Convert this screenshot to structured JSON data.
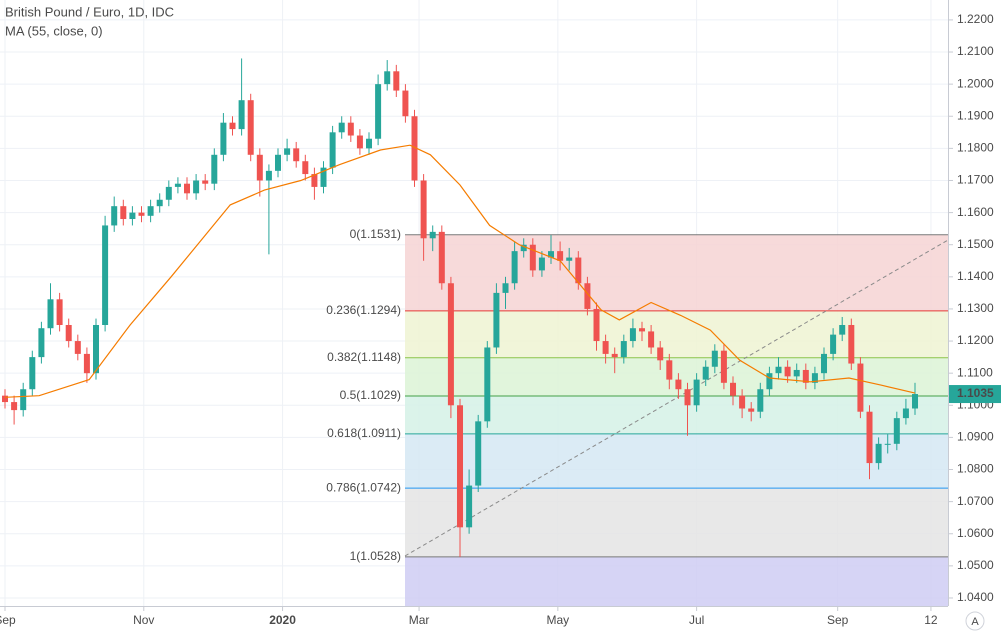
{
  "chart_data": {
    "type": "candlestick",
    "title": "British Pound / Euro, 1D, IDC",
    "subtitle": "MA (55, close, 0)",
    "up_color": "#26a69a",
    "down_color": "#ef5350",
    "x": [
      0,
      4,
      8,
      12,
      16,
      20,
      24,
      28,
      32,
      36,
      40,
      44,
      48,
      52,
      56,
      60,
      64,
      68,
      72,
      76,
      80,
      84,
      88,
      92,
      96,
      100,
      104,
      108,
      112,
      116,
      120,
      124,
      128,
      132,
      136,
      140,
      144,
      148,
      152,
      156,
      160,
      164,
      168,
      172,
      176,
      180,
      184,
      188,
      192,
      196,
      200,
      204,
      208,
      212,
      216,
      220,
      224,
      228,
      232,
      236,
      240,
      244,
      248,
      252,
      256,
      260,
      264,
      268,
      272,
      276,
      280,
      284,
      288,
      292,
      296,
      300,
      304,
      308,
      312,
      316,
      320,
      324,
      328,
      332,
      336,
      340,
      344,
      348,
      352,
      356,
      360,
      364,
      368,
      372,
      376,
      380,
      384,
      388,
      392,
      396,
      400
    ],
    "open": [
      1.103,
      1.101,
      1.0985,
      1.105,
      1.115,
      1.124,
      1.133,
      1.125,
      1.12,
      1.116,
      1.11,
      1.125,
      1.156,
      1.162,
      1.158,
      1.16,
      1.159,
      1.162,
      1.164,
      1.168,
      1.169,
      1.166,
      1.17,
      1.169,
      1.178,
      1.188,
      1.186,
      1.195,
      1.178,
      1.17,
      1.173,
      1.178,
      1.18,
      1.176,
      1.172,
      1.168,
      1.174,
      1.185,
      1.188,
      1.184,
      1.18,
      1.183,
      1.2,
      1.204,
      1.198,
      1.19,
      1.17,
      1.152,
      1.154,
      1.138,
      1.1,
      1.062,
      1.075,
      1.095,
      1.118,
      1.135,
      1.138,
      1.148,
      1.15,
      1.142,
      1.146,
      1.148,
      1.145,
      1.146,
      1.138,
      1.13,
      1.12,
      1.116,
      1.115,
      1.12,
      1.124,
      1.123,
      1.118,
      1.114,
      1.108,
      1.105,
      1.1,
      1.108,
      1.112,
      1.117,
      1.107,
      1.103,
      1.099,
      1.098,
      1.105,
      1.11,
      1.112,
      1.109,
      1.111,
      1.107,
      1.11,
      1.116,
      1.122,
      1.125,
      1.113,
      1.098,
      1.082,
      1.088,
      1.088,
      1.096,
      1.099
    ],
    "high": [
      1.105,
      1.103,
      1.107,
      1.117,
      1.126,
      1.138,
      1.135,
      1.127,
      1.122,
      1.118,
      1.127,
      1.159,
      1.165,
      1.164,
      1.162,
      1.162,
      1.164,
      1.166,
      1.17,
      1.171,
      1.171,
      1.172,
      1.172,
      1.18,
      1.191,
      1.19,
      1.208,
      1.197,
      1.18,
      1.175,
      1.18,
      1.183,
      1.182,
      1.178,
      1.174,
      1.176,
      1.187,
      1.19,
      1.19,
      1.186,
      1.185,
      1.203,
      1.2075,
      1.206,
      1.2,
      1.192,
      1.172,
      1.156,
      1.156,
      1.14,
      1.102,
      1.08,
      1.097,
      1.12,
      1.138,
      1.14,
      1.151,
      1.152,
      1.152,
      1.148,
      1.153,
      1.151,
      1.149,
      1.148,
      1.14,
      1.132,
      1.122,
      1.118,
      1.122,
      1.127,
      1.126,
      1.125,
      1.12,
      1.116,
      1.11,
      1.107,
      1.11,
      1.114,
      1.119,
      1.119,
      1.109,
      1.105,
      1.101,
      1.107,
      1.112,
      1.115,
      1.114,
      1.113,
      1.113,
      1.112,
      1.118,
      1.124,
      1.1275,
      1.127,
      1.115,
      1.1,
      1.09,
      1.091,
      1.098,
      1.102,
      1.107
    ],
    "low": [
      1.099,
      1.094,
      1.0965,
      1.103,
      1.113,
      1.122,
      1.123,
      1.118,
      1.114,
      1.107,
      1.108,
      1.123,
      1.154,
      1.156,
      1.156,
      1.157,
      1.157,
      1.16,
      1.162,
      1.166,
      1.164,
      1.164,
      1.167,
      1.167,
      1.176,
      1.184,
      1.184,
      1.176,
      1.165,
      1.147,
      1.171,
      1.176,
      1.174,
      1.17,
      1.164,
      1.166,
      1.172,
      1.183,
      1.182,
      1.178,
      1.178,
      1.181,
      1.198,
      1.196,
      1.188,
      1.168,
      1.145,
      1.148,
      1.136,
      1.096,
      1.0528,
      1.06,
      1.073,
      1.093,
      1.116,
      1.13,
      1.136,
      1.146,
      1.14,
      1.14,
      1.144,
      1.142,
      1.142,
      1.136,
      1.128,
      1.117,
      1.113,
      1.11,
      1.113,
      1.118,
      1.12,
      1.116,
      1.111,
      1.105,
      1.102,
      1.0905,
      1.098,
      1.106,
      1.11,
      1.105,
      1.1,
      1.096,
      1.095,
      1.096,
      1.103,
      1.108,
      1.107,
      1.107,
      1.105,
      1.105,
      1.108,
      1.114,
      1.12,
      1.111,
      1.096,
      1.077,
      1.08,
      1.085,
      1.086,
      1.094,
      1.097
    ],
    "close": [
      1.101,
      1.0985,
      1.105,
      1.115,
      1.124,
      1.133,
      1.125,
      1.12,
      1.116,
      1.11,
      1.125,
      1.156,
      1.162,
      1.158,
      1.16,
      1.159,
      1.162,
      1.164,
      1.168,
      1.169,
      1.166,
      1.17,
      1.169,
      1.178,
      1.188,
      1.186,
      1.195,
      1.178,
      1.17,
      1.173,
      1.178,
      1.18,
      1.176,
      1.172,
      1.168,
      1.174,
      1.185,
      1.188,
      1.184,
      1.18,
      1.183,
      1.2,
      1.204,
      1.198,
      1.19,
      1.17,
      1.152,
      1.154,
      1.138,
      1.1,
      1.062,
      1.075,
      1.095,
      1.118,
      1.135,
      1.138,
      1.148,
      1.15,
      1.142,
      1.146,
      1.148,
      1.145,
      1.146,
      1.138,
      1.13,
      1.12,
      1.116,
      1.115,
      1.12,
      1.124,
      1.123,
      1.118,
      1.114,
      1.108,
      1.105,
      1.1,
      1.108,
      1.112,
      1.117,
      1.107,
      1.103,
      1.099,
      1.098,
      1.105,
      1.11,
      1.112,
      1.109,
      1.111,
      1.107,
      1.11,
      1.116,
      1.122,
      1.125,
      1.113,
      1.098,
      1.082,
      1.088,
      1.088,
      1.096,
      1.099,
      1.1035
    ],
    "ma": {
      "color": "#f57c00",
      "x": [
        0,
        15,
        37,
        55,
        73,
        99,
        114,
        130,
        147,
        165,
        178,
        187,
        200,
        213,
        226,
        244,
        262,
        270,
        284,
        297,
        310,
        323,
        336,
        354,
        371,
        385,
        400
      ],
      "values": [
        1.1025,
        1.103,
        1.108,
        1.125,
        1.14,
        1.1624,
        1.167,
        1.17,
        1.1749,
        1.1795,
        1.181,
        1.178,
        1.1686,
        1.156,
        1.15,
        1.145,
        1.1297,
        1.1266,
        1.132,
        1.128,
        1.1234,
        1.114,
        1.1085,
        1.1073,
        1.1085,
        1.1063,
        1.1038
      ]
    },
    "last_price": {
      "value": 1.1035,
      "label": "1.1035"
    },
    "fib_levels": [
      {
        "label": "0(1.1531)",
        "price": 1.1531,
        "color": "#787878",
        "fill": "#f6d3d3"
      },
      {
        "label": "0.236(1.1294)",
        "price": 1.1294,
        "color": "#e53935",
        "fill": "#eef3d2"
      },
      {
        "label": "0.382(1.1148)",
        "price": 1.1148,
        "color": "#8bc34a",
        "fill": "#dcf3d6"
      },
      {
        "label": "0.5(1.1029)",
        "price": 1.1029,
        "color": "#43a047",
        "fill": "#d5f1e6"
      },
      {
        "label": "0.618(1.0911)",
        "price": 1.0911,
        "color": "#26a69a",
        "fill": "#d5e7f3"
      },
      {
        "label": "0.786(1.0742)",
        "price": 1.0742,
        "color": "#2196f3",
        "fill": "#e4e4e4"
      },
      {
        "label": "1(1.0528)",
        "price": 1.0528,
        "color": "#787878",
        "fill": "#cfcdf3"
      }
    ],
    "xlim": [
      -2.2,
      414.5
    ],
    "xticks": [
      {
        "value": 0,
        "label": "Sep"
      },
      {
        "value": 61,
        "label": "Nov"
      },
      {
        "value": 122,
        "label": "2020"
      },
      {
        "value": 182,
        "label": "Mar"
      },
      {
        "value": 243,
        "label": "May"
      },
      {
        "value": 304,
        "label": "Jul"
      },
      {
        "value": 366,
        "label": "Sep"
      },
      {
        "value": 407,
        "label": "12"
      }
    ],
    "ylim": [
      1.0375,
      1.2262
    ],
    "yticks": [
      {
        "value": 1.04,
        "label": "1.0400"
      },
      {
        "value": 1.05,
        "label": "1.0500"
      },
      {
        "value": 1.06,
        "label": "1.0600"
      },
      {
        "value": 1.07,
        "label": "1.0700"
      },
      {
        "value": 1.08,
        "label": "1.0800"
      },
      {
        "value": 1.09,
        "label": "1.0900"
      },
      {
        "value": 1.1,
        "label": "1.1000"
      },
      {
        "value": 1.11,
        "label": "1.1100"
      },
      {
        "value": 1.12,
        "label": "1.1200"
      },
      {
        "value": 1.13,
        "label": "1.1300"
      },
      {
        "value": 1.14,
        "label": "1.1400"
      },
      {
        "value": 1.15,
        "label": "1.1500"
      },
      {
        "value": 1.16,
        "label": "1.1600"
      },
      {
        "value": 1.17,
        "label": "1.1700"
      },
      {
        "value": 1.18,
        "label": "1.1800"
      },
      {
        "value": 1.19,
        "label": "1.1900"
      },
      {
        "value": 1.2,
        "label": "1.2000"
      },
      {
        "value": 1.21,
        "label": "1.2100"
      },
      {
        "value": 1.22,
        "label": "1.2200"
      }
    ],
    "grid": true,
    "axis_button": "A"
  }
}
